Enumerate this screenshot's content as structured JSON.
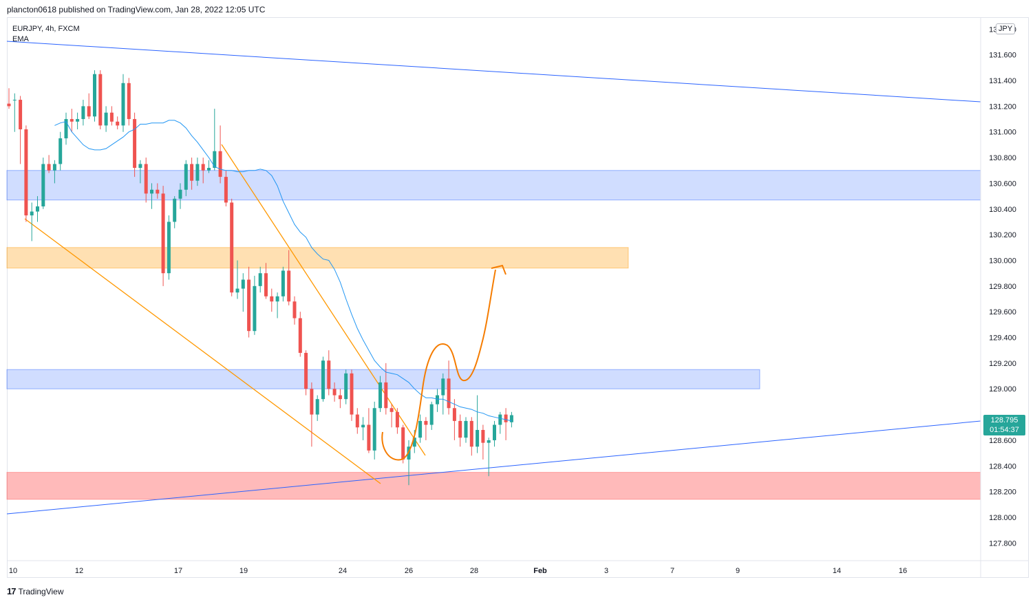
{
  "header": {
    "published": "plancton0618 published on TradingView.com, Jan 28, 2022 12:05 UTC"
  },
  "legend": {
    "symbol": "EURJPY, 4h, FXCM",
    "indicator": "EMA"
  },
  "footer": {
    "brand": "TradingView",
    "logo_glyph": "17"
  },
  "price_axis": {
    "currency": "JPY",
    "last_price": "128.795",
    "countdown": "01:54:37",
    "labels": [
      "131.800",
      "131.600",
      "131.400",
      "131.200",
      "131.000",
      "130.800",
      "130.600",
      "130.400",
      "130.200",
      "130.000",
      "129.800",
      "129.600",
      "129.400",
      "129.200",
      "129.000",
      "128.600",
      "128.400",
      "128.200",
      "128.000",
      "127.800"
    ]
  },
  "time_axis": {
    "labels": [
      "10",
      "12",
      "17",
      "19",
      "24",
      "26",
      "28",
      "Feb",
      "3",
      "7",
      "9",
      "14",
      "16"
    ]
  },
  "colors": {
    "up": "#26a69a",
    "down": "#ef5350",
    "ema": "#2196f3",
    "trend": "#2962ff",
    "wedge": "#ff9800",
    "projection": "#f57c00",
    "blue_zone": "#2962ff",
    "orange_zone": "#ff9800",
    "red_zone": "#ff5252"
  },
  "chart_data": {
    "type": "candlestick",
    "symbol": "EURJPY",
    "timeframe": "4h",
    "source": "FXCM",
    "ylim": [
      127.7,
      131.85
    ],
    "candles": [
      {
        "o": 131.22,
        "h": 131.34,
        "l": 131.18,
        "c": 131.2
      },
      {
        "o": 131.25,
        "h": 131.3,
        "l": 131.0,
        "c": 131.25
      },
      {
        "o": 131.25,
        "h": 131.28,
        "l": 130.75,
        "c": 131.02
      },
      {
        "o": 131.02,
        "h": 131.05,
        "l": 130.3,
        "c": 130.35
      },
      {
        "o": 130.35,
        "h": 130.45,
        "l": 130.15,
        "c": 130.38
      },
      {
        "o": 130.38,
        "h": 130.5,
        "l": 130.3,
        "c": 130.42
      },
      {
        "o": 130.42,
        "h": 130.8,
        "l": 130.4,
        "c": 130.75
      },
      {
        "o": 130.75,
        "h": 130.82,
        "l": 130.68,
        "c": 130.7
      },
      {
        "o": 130.7,
        "h": 130.78,
        "l": 130.6,
        "c": 130.75
      },
      {
        "o": 130.75,
        "h": 131.0,
        "l": 130.7,
        "c": 130.95
      },
      {
        "o": 130.95,
        "h": 131.15,
        "l": 130.9,
        "c": 131.1
      },
      {
        "o": 131.1,
        "h": 131.18,
        "l": 131.0,
        "c": 131.08
      },
      {
        "o": 131.08,
        "h": 131.15,
        "l": 131.02,
        "c": 131.1
      },
      {
        "o": 131.1,
        "h": 131.25,
        "l": 131.05,
        "c": 131.2
      },
      {
        "o": 131.2,
        "h": 131.3,
        "l": 131.1,
        "c": 131.12
      },
      {
        "o": 131.12,
        "h": 131.48,
        "l": 131.08,
        "c": 131.45
      },
      {
        "o": 131.45,
        "h": 131.48,
        "l": 131.02,
        "c": 131.05
      },
      {
        "o": 131.05,
        "h": 131.2,
        "l": 131.0,
        "c": 131.15
      },
      {
        "o": 131.15,
        "h": 131.2,
        "l": 131.05,
        "c": 131.08
      },
      {
        "o": 131.08,
        "h": 131.12,
        "l": 131.02,
        "c": 131.05
      },
      {
        "o": 131.05,
        "h": 131.45,
        "l": 131.0,
        "c": 131.38
      },
      {
        "o": 131.38,
        "h": 131.42,
        "l": 131.05,
        "c": 131.1
      },
      {
        "o": 131.1,
        "h": 131.15,
        "l": 130.65,
        "c": 130.72
      },
      {
        "o": 130.72,
        "h": 130.78,
        "l": 130.6,
        "c": 130.75
      },
      {
        "o": 130.75,
        "h": 130.8,
        "l": 130.45,
        "c": 130.52
      },
      {
        "o": 130.52,
        "h": 130.6,
        "l": 130.4,
        "c": 130.55
      },
      {
        "o": 130.55,
        "h": 130.6,
        "l": 130.48,
        "c": 130.52
      },
      {
        "o": 130.52,
        "h": 130.58,
        "l": 129.8,
        "c": 129.9
      },
      {
        "o": 129.9,
        "h": 130.35,
        "l": 129.85,
        "c": 130.3
      },
      {
        "o": 130.3,
        "h": 130.5,
        "l": 130.25,
        "c": 130.48
      },
      {
        "o": 130.48,
        "h": 130.6,
        "l": 130.4,
        "c": 130.55
      },
      {
        "o": 130.55,
        "h": 130.78,
        "l": 130.5,
        "c": 130.75
      },
      {
        "o": 130.75,
        "h": 130.8,
        "l": 130.55,
        "c": 130.62
      },
      {
        "o": 130.62,
        "h": 130.8,
        "l": 130.58,
        "c": 130.75
      },
      {
        "o": 130.75,
        "h": 130.8,
        "l": 130.6,
        "c": 130.7
      },
      {
        "o": 130.7,
        "h": 130.78,
        "l": 130.68,
        "c": 130.72
      },
      {
        "o": 130.72,
        "h": 131.18,
        "l": 130.7,
        "c": 130.85
      },
      {
        "o": 130.85,
        "h": 131.05,
        "l": 130.6,
        "c": 130.65
      },
      {
        "o": 130.65,
        "h": 130.7,
        "l": 130.42,
        "c": 130.45
      },
      {
        "o": 130.45,
        "h": 130.48,
        "l": 129.72,
        "c": 129.75
      },
      {
        "o": 129.75,
        "h": 130.0,
        "l": 129.7,
        "c": 129.78
      },
      {
        "o": 129.78,
        "h": 129.9,
        "l": 129.6,
        "c": 129.85
      },
      {
        "o": 129.85,
        "h": 129.95,
        "l": 129.4,
        "c": 129.45
      },
      {
        "o": 129.45,
        "h": 129.88,
        "l": 129.42,
        "c": 129.8
      },
      {
        "o": 129.8,
        "h": 129.95,
        "l": 129.75,
        "c": 129.9
      },
      {
        "o": 129.9,
        "h": 129.98,
        "l": 129.7,
        "c": 129.72
      },
      {
        "o": 129.72,
        "h": 129.78,
        "l": 129.6,
        "c": 129.68
      },
      {
        "o": 129.68,
        "h": 129.75,
        "l": 129.55,
        "c": 129.72
      },
      {
        "o": 129.72,
        "h": 129.95,
        "l": 129.68,
        "c": 129.92
      },
      {
        "o": 129.92,
        "h": 130.08,
        "l": 129.65,
        "c": 129.68
      },
      {
        "o": 129.68,
        "h": 129.72,
        "l": 129.5,
        "c": 129.55
      },
      {
        "o": 129.55,
        "h": 129.6,
        "l": 129.25,
        "c": 129.28
      },
      {
        "o": 129.28,
        "h": 129.3,
        "l": 128.95,
        "c": 129.0
      },
      {
        "o": 129.0,
        "h": 129.05,
        "l": 128.55,
        "c": 128.8
      },
      {
        "o": 128.8,
        "h": 128.95,
        "l": 128.75,
        "c": 128.92
      },
      {
        "o": 128.92,
        "h": 129.25,
        "l": 128.9,
        "c": 129.22
      },
      {
        "o": 129.22,
        "h": 129.3,
        "l": 128.95,
        "c": 129.0
      },
      {
        "o": 129.0,
        "h": 129.05,
        "l": 128.9,
        "c": 128.95
      },
      {
        "o": 128.95,
        "h": 129.0,
        "l": 128.85,
        "c": 128.92
      },
      {
        "o": 128.92,
        "h": 129.15,
        "l": 128.88,
        "c": 129.12
      },
      {
        "o": 129.12,
        "h": 129.15,
        "l": 128.75,
        "c": 128.8
      },
      {
        "o": 128.8,
        "h": 128.85,
        "l": 128.65,
        "c": 128.7
      },
      {
        "o": 128.7,
        "h": 128.78,
        "l": 128.6,
        "c": 128.72
      },
      {
        "o": 128.72,
        "h": 128.85,
        "l": 128.5,
        "c": 128.52
      },
      {
        "o": 128.52,
        "h": 128.9,
        "l": 128.45,
        "c": 128.85
      },
      {
        "o": 128.85,
        "h": 129.1,
        "l": 128.82,
        "c": 129.05
      },
      {
        "o": 129.05,
        "h": 129.2,
        "l": 128.8,
        "c": 128.85
      },
      {
        "o": 128.85,
        "h": 128.88,
        "l": 128.7,
        "c": 128.82
      },
      {
        "o": 128.82,
        "h": 128.85,
        "l": 128.65,
        "c": 128.7
      },
      {
        "o": 128.7,
        "h": 128.72,
        "l": 128.42,
        "c": 128.45
      },
      {
        "o": 128.45,
        "h": 128.6,
        "l": 128.25,
        "c": 128.55
      },
      {
        "o": 128.55,
        "h": 128.68,
        "l": 128.5,
        "c": 128.62
      },
      {
        "o": 128.62,
        "h": 128.8,
        "l": 128.58,
        "c": 128.75
      },
      {
        "o": 128.75,
        "h": 128.78,
        "l": 128.6,
        "c": 128.72
      },
      {
        "o": 128.72,
        "h": 128.9,
        "l": 128.68,
        "c": 128.88
      },
      {
        "o": 128.88,
        "h": 129.0,
        "l": 128.82,
        "c": 128.95
      },
      {
        "o": 128.95,
        "h": 129.12,
        "l": 128.8,
        "c": 129.08
      },
      {
        "o": 129.08,
        "h": 129.22,
        "l": 128.8,
        "c": 128.85
      },
      {
        "o": 128.85,
        "h": 128.92,
        "l": 128.6,
        "c": 128.75
      },
      {
        "o": 128.75,
        "h": 128.8,
        "l": 128.55,
        "c": 128.62
      },
      {
        "o": 128.62,
        "h": 128.78,
        "l": 128.58,
        "c": 128.75
      },
      {
        "o": 128.75,
        "h": 128.78,
        "l": 128.48,
        "c": 128.55
      },
      {
        "o": 128.55,
        "h": 128.95,
        "l": 128.5,
        "c": 128.68
      },
      {
        "o": 128.68,
        "h": 128.72,
        "l": 128.45,
        "c": 128.58
      },
      {
        "o": 128.58,
        "h": 128.62,
        "l": 128.32,
        "c": 128.6
      },
      {
        "o": 128.6,
        "h": 128.75,
        "l": 128.55,
        "c": 128.72
      },
      {
        "o": 128.72,
        "h": 128.82,
        "l": 128.65,
        "c": 128.8
      },
      {
        "o": 128.8,
        "h": 128.85,
        "l": 128.6,
        "c": 128.74
      },
      {
        "o": 128.74,
        "h": 128.82,
        "l": 128.7,
        "c": 128.795
      }
    ],
    "ema": [
      131.05,
      131.07,
      131.08,
      131.0,
      130.95,
      130.9,
      130.87,
      130.86,
      130.86,
      130.87,
      130.9,
      130.93,
      130.96,
      131.0,
      131.02,
      131.06,
      131.06,
      131.07,
      131.07,
      131.07,
      131.09,
      131.09,
      131.07,
      131.03,
      130.97,
      130.92,
      130.86,
      130.8,
      130.73,
      130.71,
      130.7,
      130.7,
      130.69,
      130.69,
      130.7,
      130.7,
      130.71,
      130.7,
      130.66,
      130.58,
      130.46,
      130.37,
      130.28,
      130.22,
      130.18,
      130.1,
      130.05,
      130.01,
      130.0,
      129.93,
      129.83,
      129.7,
      129.58,
      129.47,
      129.38,
      129.3,
      129.22,
      129.17,
      129.13,
      129.12,
      129.11,
      129.08,
      129.05,
      129.0,
      128.96,
      128.93,
      128.93,
      128.92,
      128.92,
      128.9,
      128.88,
      128.86,
      128.85,
      128.84,
      128.82,
      128.81,
      128.79,
      128.78,
      128.77,
      128.76,
      128.75
    ],
    "zones": [
      {
        "color": "blue",
        "top": 130.7,
        "bottom": 130.47,
        "x_end": "right"
      },
      {
        "color": "orange",
        "top": 130.1,
        "bottom": 129.94,
        "x_end": "Feb 4"
      },
      {
        "color": "blue",
        "top": 129.15,
        "bottom": 129.0,
        "x_end": "Feb 10"
      },
      {
        "color": "red",
        "top": 128.35,
        "bottom": 128.14,
        "x_end": "right"
      }
    ]
  }
}
